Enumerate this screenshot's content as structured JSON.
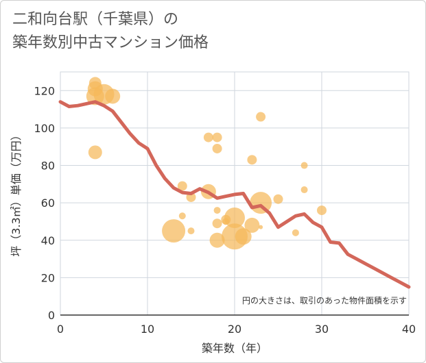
{
  "page": {
    "title_line1": "二和向台駅（千葉県）の",
    "title_line2": "築年数別中古マンション価格"
  },
  "chart_data": {
    "type": "scatter",
    "title": "二和向台駅（千葉県）の築年数別中古マンション価格",
    "xlabel": "築年数（年）",
    "ylabel": "坪（3.3㎡）単価（万円）",
    "xlim": [
      0,
      40
    ],
    "ylim": [
      0,
      130
    ],
    "xticks": [
      0,
      10,
      20,
      30,
      40
    ],
    "yticks": [
      0,
      20,
      40,
      60,
      80,
      100,
      120
    ],
    "grid": true,
    "note": "円の大きさは、取引のあった物件面積を示す",
    "bubble_color": "#f5b95a",
    "line_color": "#d3675a",
    "points": [
      {
        "x": 4,
        "y": 124,
        "s": 9
      },
      {
        "x": 4,
        "y": 121,
        "s": 11
      },
      {
        "x": 4,
        "y": 117,
        "s": 13
      },
      {
        "x": 5,
        "y": 118,
        "s": 15
      },
      {
        "x": 6,
        "y": 117,
        "s": 11
      },
      {
        "x": 4,
        "y": 87,
        "s": 10
      },
      {
        "x": 13,
        "y": 45,
        "s": 17
      },
      {
        "x": 14,
        "y": 69,
        "s": 7
      },
      {
        "x": 14,
        "y": 53,
        "s": 5
      },
      {
        "x": 15,
        "y": 63,
        "s": 7
      },
      {
        "x": 15,
        "y": 45,
        "s": 5
      },
      {
        "x": 17,
        "y": 95,
        "s": 7
      },
      {
        "x": 17,
        "y": 66,
        "s": 11
      },
      {
        "x": 18,
        "y": 95,
        "s": 7
      },
      {
        "x": 18,
        "y": 89,
        "s": 7
      },
      {
        "x": 18,
        "y": 56,
        "s": 5
      },
      {
        "x": 18,
        "y": 49,
        "s": 7
      },
      {
        "x": 18,
        "y": 40,
        "s": 11
      },
      {
        "x": 19,
        "y": 51,
        "s": 7
      },
      {
        "x": 19,
        "y": 50,
        "s": 5
      },
      {
        "x": 20,
        "y": 52,
        "s": 15
      },
      {
        "x": 20,
        "y": 42,
        "s": 19
      },
      {
        "x": 21,
        "y": 42,
        "s": 12
      },
      {
        "x": 22,
        "y": 83,
        "s": 7
      },
      {
        "x": 22,
        "y": 48,
        "s": 11
      },
      {
        "x": 23,
        "y": 106,
        "s": 7
      },
      {
        "x": 23,
        "y": 60,
        "s": 16
      },
      {
        "x": 23,
        "y": 47,
        "s": 3
      },
      {
        "x": 25,
        "y": 62,
        "s": 7
      },
      {
        "x": 27,
        "y": 44,
        "s": 5
      },
      {
        "x": 28,
        "y": 80,
        "s": 5
      },
      {
        "x": 28,
        "y": 67,
        "s": 5
      },
      {
        "x": 30,
        "y": 56,
        "s": 7
      }
    ],
    "trend": {
      "x": [
        0,
        1,
        2,
        3,
        4,
        5,
        6,
        7,
        8,
        9,
        10,
        11,
        12,
        13,
        14,
        15,
        16,
        17,
        18,
        19,
        20,
        21,
        22,
        23,
        24,
        25,
        26,
        27,
        28,
        29,
        30,
        31,
        32,
        33,
        34,
        35,
        36,
        37,
        38,
        39,
        40
      ],
      "y": [
        114,
        111.5,
        112,
        113,
        114,
        112,
        109,
        103,
        97,
        92,
        89,
        80,
        73,
        68,
        65.5,
        65,
        67.5,
        65.5,
        62.5,
        63.5,
        64.5,
        65,
        57.5,
        58.5,
        54.5,
        47,
        50,
        53,
        54,
        49.5,
        47,
        39,
        38.5,
        32.5,
        30,
        27.5,
        25,
        22.5,
        20,
        17.5,
        15
      ]
    }
  }
}
